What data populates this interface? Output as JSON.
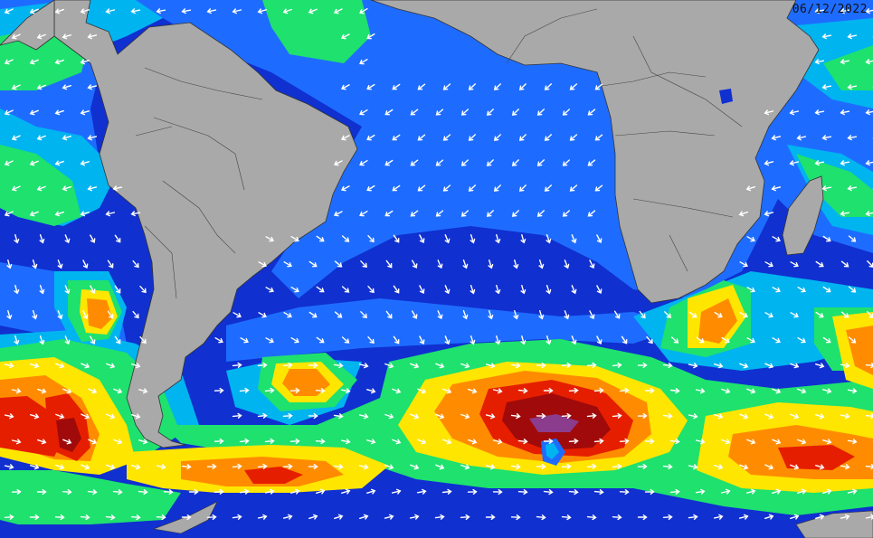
{
  "map": {
    "timestamp": "06/12/2022",
    "colors": {
      "ocean_calm": "#0a10c8",
      "ocean_low": "#1e66ff",
      "ocean_mid": "#00b4f0",
      "green": "#1ee16e",
      "yellow": "#ffe600",
      "orange": "#ff8c00",
      "red": "#e61e00",
      "darkred": "#a00a0a",
      "purple": "#8c3c8c",
      "land": "#a9a9a9",
      "arrow": "#ffffff"
    },
    "land_regions": [
      "south-america",
      "africa",
      "madagascar",
      "antarctic-peninsula"
    ],
    "wave_regions": [
      "southern-storm-center",
      "atlantic-band",
      "pacific-band",
      "indian-ocean-band"
    ]
  }
}
